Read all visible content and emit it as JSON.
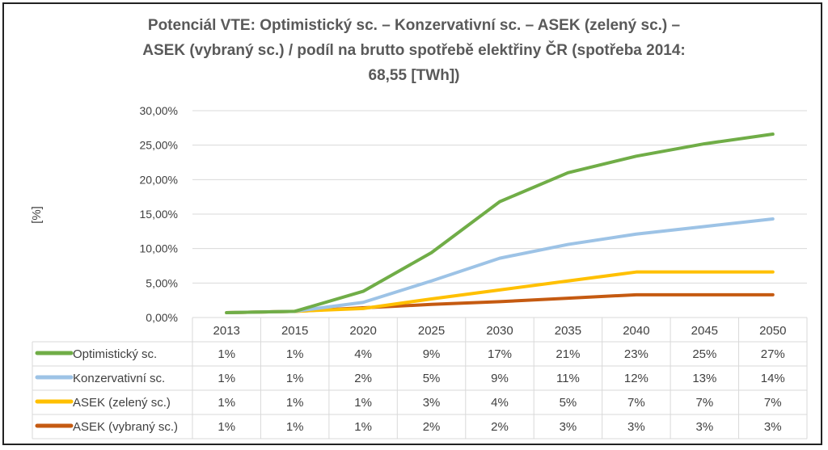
{
  "chart_data": {
    "type": "line",
    "title_lines": [
      "Potenciál VTE:  Optimistický sc. – Konzervativní sc. – ASEK (zelený sc.) –",
      "ASEK (vybraný sc.) / podíl na brutto spotřebě elektřiny ČR (spotřeba 2014:",
      "68,55 [TWh])"
    ],
    "ylabel": "[%]",
    "xlabel": "",
    "ylim": [
      0,
      30
    ],
    "yticks": [
      "0,00%",
      "5,00%",
      "10,00%",
      "15,00%",
      "20,00%",
      "25,00%",
      "30,00%"
    ],
    "grid": true,
    "legend": "data-table",
    "categories": [
      "2013",
      "2015",
      "2020",
      "2025",
      "2030",
      "2035",
      "2040",
      "2045",
      "2050"
    ],
    "series": [
      {
        "name": "Optimistický sc.",
        "color": "#70ad47",
        "values": [
          0.7,
          0.9,
          3.8,
          9.4,
          16.8,
          21.0,
          23.4,
          25.2,
          26.6
        ],
        "labels": [
          "1%",
          "1%",
          "4%",
          "9%",
          "17%",
          "21%",
          "23%",
          "25%",
          "27%"
        ]
      },
      {
        "name": "Konzervativní sc.",
        "color": "#9dc3e6",
        "values": [
          0.7,
          0.9,
          2.2,
          5.3,
          8.6,
          10.6,
          12.1,
          13.2,
          14.3
        ],
        "labels": [
          "1%",
          "1%",
          "2%",
          "5%",
          "9%",
          "11%",
          "12%",
          "13%",
          "14%"
        ]
      },
      {
        "name": "ASEK (zelený sc.)",
        "color": "#ffc000",
        "values": [
          0.7,
          0.9,
          1.3,
          2.7,
          4.0,
          5.3,
          6.6,
          6.6,
          6.6
        ],
        "labels": [
          "1%",
          "1%",
          "1%",
          "3%",
          "4%",
          "5%",
          "7%",
          "7%",
          "7%"
        ]
      },
      {
        "name": "ASEK (vybraný sc.)",
        "color": "#c55a11",
        "values": [
          0.7,
          0.9,
          1.4,
          1.9,
          2.3,
          2.8,
          3.3,
          3.3,
          3.3
        ],
        "labels": [
          "1%",
          "1%",
          "1%",
          "2%",
          "2%",
          "3%",
          "3%",
          "3%",
          "3%"
        ]
      }
    ]
  }
}
